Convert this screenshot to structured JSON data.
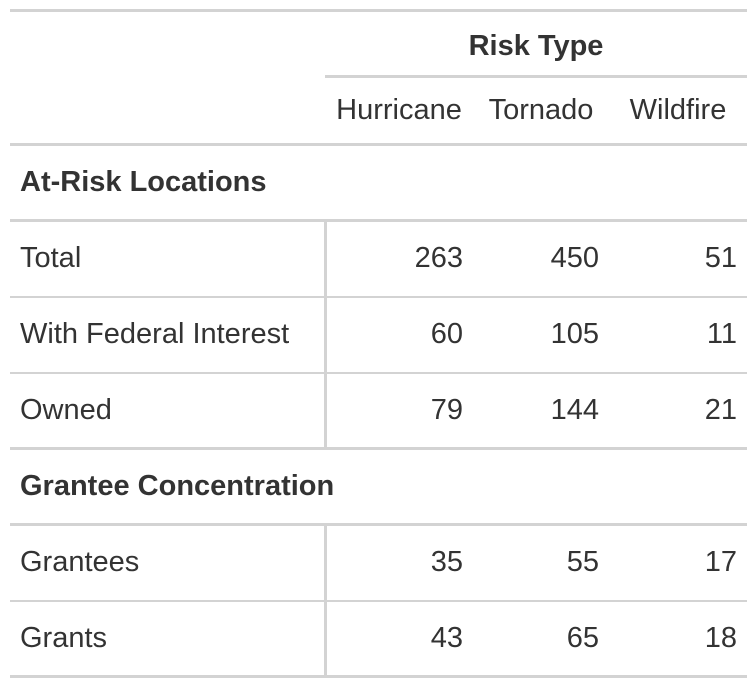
{
  "table": {
    "spanner_label": "Risk Type",
    "columns": [
      "Hurricane",
      "Tornado",
      "Wildfire"
    ],
    "groups": [
      {
        "label": "At-Risk Locations",
        "rows": [
          {
            "label": "Total",
            "values": [
              "263",
              "450",
              "51"
            ]
          },
          {
            "label": "With Federal Interest",
            "values": [
              "60",
              "105",
              "11"
            ]
          },
          {
            "label": "Owned",
            "values": [
              "79",
              "144",
              "21"
            ]
          }
        ]
      },
      {
        "label": "Grantee Concentration",
        "rows": [
          {
            "label": "Grantees",
            "values": [
              "35",
              "55",
              "17"
            ]
          },
          {
            "label": "Grants",
            "values": [
              "43",
              "65",
              "18"
            ]
          }
        ]
      }
    ]
  }
}
